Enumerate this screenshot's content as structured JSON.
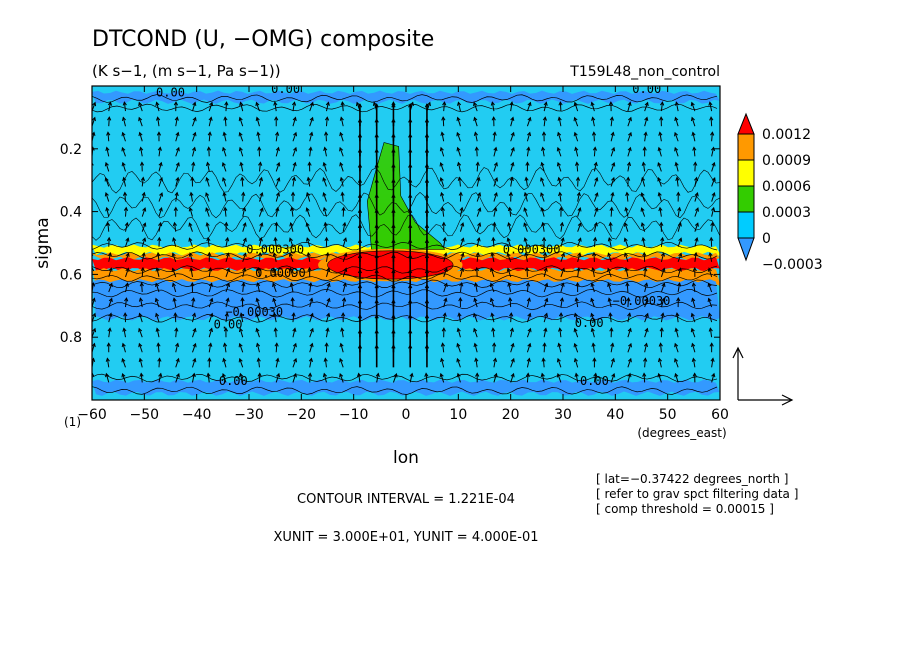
{
  "chart_data": {
    "type": "heatmap",
    "title": "DTCOND (U, −OMG) composite",
    "subtitle": "(K s−1, (m s−1, Pa s−1))",
    "run_label": "T159L48_non_control",
    "xlabel": "lon",
    "xunits": "(degrees_east)",
    "ylabel": "sigma",
    "xlim": [
      -60,
      60
    ],
    "ylim": [
      1.0,
      0.0
    ],
    "y_reversed": true,
    "x_ticks": [
      -60,
      -50,
      -40,
      -30,
      -20,
      -10,
      0,
      10,
      20,
      30,
      40,
      50,
      60
    ],
    "x_tick_labels": [
      "−60",
      "−50",
      "−40",
      "−30",
      "−20",
      "−10",
      "0",
      "10",
      "20",
      "30",
      "40",
      "50",
      "60"
    ],
    "y_ticks": [
      0.2,
      0.4,
      0.6,
      0.8
    ],
    "y_tick_labels": [
      "0.2",
      "0.4",
      "0.6",
      "0.8"
    ],
    "y_bottom_label": "(1)",
    "legend": {
      "placement": "right",
      "levels": [
        "0.0012",
        "0.0009",
        "0.0006",
        "0.0003",
        "0",
        "−0.0003"
      ],
      "colors": [
        "#ff0000",
        "#ff9900",
        "#ffff00",
        "#33cc00",
        "#00ccff",
        "#3399ff"
      ]
    },
    "shading": {
      "background_color": "#22ccf2",
      "bands": [
        {
          "sigma_top": 0.02,
          "sigma_bottom": 0.05,
          "lon_from": -60,
          "lon_to": 60,
          "color": "#3399ff"
        },
        {
          "sigma_top": 0.51,
          "sigma_bottom": 0.535,
          "lon_from": -60,
          "lon_to": 60,
          "color": "#ffff00"
        },
        {
          "sigma_top": 0.535,
          "sigma_bottom": 0.55,
          "lon_from": -60,
          "lon_to": 60,
          "color": "#ff9900"
        },
        {
          "sigma_top": 0.55,
          "sigma_bottom": 0.585,
          "lon_from": -60,
          "lon_to": 60,
          "color": "#ff0000"
        },
        {
          "sigma_top": 0.585,
          "sigma_bottom": 0.63,
          "lon_from": -60,
          "lon_to": 60,
          "color": "#ff9900"
        },
        {
          "sigma_top": 0.62,
          "sigma_bottom": 0.74,
          "lon_from": -60,
          "lon_to": 60,
          "color": "#3399ff"
        },
        {
          "sigma_top": 0.94,
          "sigma_bottom": 0.98,
          "lon_from": -60,
          "lon_to": 60,
          "color": "#3399ff"
        }
      ],
      "features": [
        {
          "kind": "convective_plume",
          "lon_center": -3,
          "lon_halfwidth": 8,
          "sigma_top": 0.18,
          "sigma_bottom": 0.52,
          "color": "#33cc00"
        },
        {
          "kind": "heating_max",
          "lon_center": -3,
          "lon_halfwidth": 12,
          "sigma_center": 0.57,
          "sigma_halfwidth": 0.045,
          "color": "#ff0000"
        }
      ]
    },
    "contour_labels": [
      {
        "text": "0.00",
        "lon": -45,
        "sigma": 0.02
      },
      {
        "text": "0.00",
        "lon": -23,
        "sigma": 0.01
      },
      {
        "text": "0.00",
        "lon": 46,
        "sigma": 0.01
      },
      {
        "text": "0.000300",
        "lon": -25,
        "sigma": 0.52
      },
      {
        "text": "0.000300",
        "lon": 24,
        "sigma": 0.52
      },
      {
        "text": "0.00090",
        "lon": -24,
        "sigma": 0.595
      },
      {
        "text": "−0.00030",
        "lon": 45,
        "sigma": 0.685
      },
      {
        "text": "−0.00030",
        "lon": -29,
        "sigma": 0.72
      },
      {
        "text": "0.00",
        "lon": -34,
        "sigma": 0.76
      },
      {
        "text": "0.00",
        "lon": 35,
        "sigma": 0.755
      },
      {
        "text": "0.00",
        "lon": -33,
        "sigma": 0.94
      },
      {
        "text": "0.00",
        "lon": 36,
        "sigma": 0.94
      }
    ],
    "vectors": {
      "description": "wind vectors (U, −OMG) on lon–sigma grid",
      "strong_updraft_lon": [
        -10,
        10
      ],
      "reference_x": "3.000E+01",
      "reference_y": "4.000E-01"
    },
    "annotations": {
      "contour_interval": "CONTOUR INTERVAL = 1.221E-04",
      "units": "XUNIT = 3.000E+01, YUNIT = 4.000E-01",
      "info_lines": [
        "[ lat=−0.37422 degrees_north ]",
        "[ refer to grav spct filtering data ]",
        "[ comp threshold = 0.00015 ]"
      ]
    }
  }
}
